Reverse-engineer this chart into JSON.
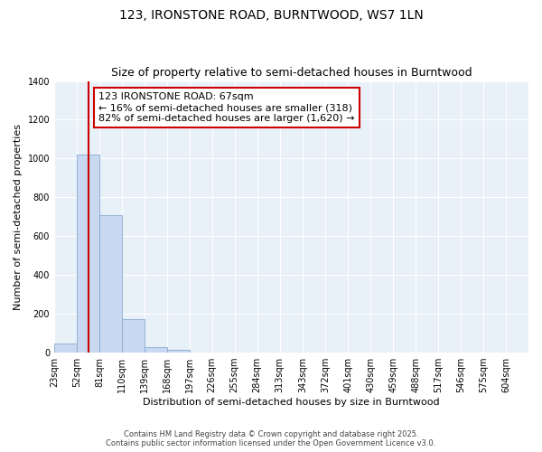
{
  "title": "123, IRONSTONE ROAD, BURNTWOOD, WS7 1LN",
  "subtitle": "Size of property relative to semi-detached houses in Burntwood",
  "xlabel": "Distribution of semi-detached houses by size in Burntwood",
  "ylabel": "Number of semi-detached properties",
  "bins": [
    23,
    52,
    81,
    110,
    139,
    168,
    197,
    226,
    255,
    284,
    313,
    343,
    372,
    401,
    430,
    459,
    488,
    517,
    546,
    575,
    604
  ],
  "values": [
    45,
    1020,
    710,
    175,
    30,
    15,
    0,
    0,
    0,
    0,
    0,
    0,
    0,
    0,
    0,
    0,
    0,
    0,
    0,
    0
  ],
  "bar_color": "#c8d8f0",
  "bar_edge_color": "#88aad0",
  "property_line_x": 67,
  "property_line_color": "#cc0000",
  "annotation_text": "123 IRONSTONE ROAD: 67sqm\n← 16% of semi-detached houses are smaller (318)\n82% of semi-detached houses are larger (1,620) →",
  "annotation_box_facecolor": "#ffffff",
  "annotation_border_color": "#cc0000",
  "ylim": [
    0,
    1400
  ],
  "yticks": [
    0,
    200,
    400,
    600,
    800,
    1000,
    1200,
    1400
  ],
  "background_color": "#ffffff",
  "plot_bg_color": "#e8f0f8",
  "footer_line1": "Contains HM Land Registry data © Crown copyright and database right 2025.",
  "footer_line2": "Contains public sector information licensed under the Open Government Licence v3.0.",
  "title_fontsize": 10,
  "subtitle_fontsize": 9,
  "annotation_fontsize": 8,
  "tick_fontsize": 7,
  "ylabel_fontsize": 8,
  "xlabel_fontsize": 8
}
